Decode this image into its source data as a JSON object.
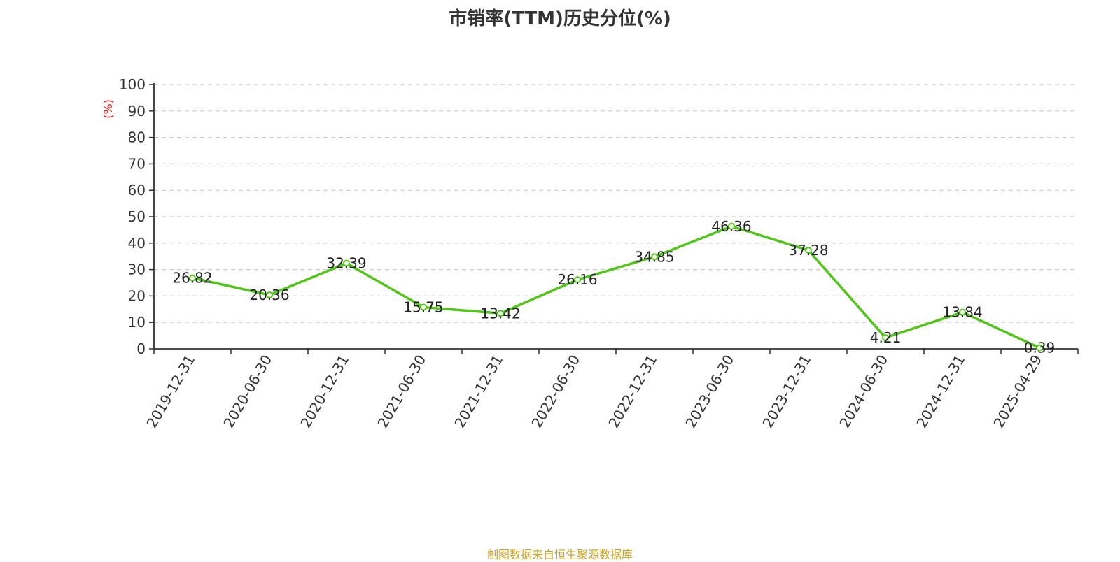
{
  "source_note": "制图数据来自恒生聚源数据库",
  "colors": {
    "line": "#52c41a",
    "axis": "#333333",
    "grid": "#cccccc",
    "ylabel": "#ff0000",
    "source": "#c9a227"
  },
  "chart_data": {
    "type": "line",
    "title": "市销率(TTM)历史分位(%)",
    "ylabel": "(%)",
    "xlabel": "",
    "ylim": [
      0,
      100
    ],
    "yticks": [
      0,
      10,
      20,
      30,
      40,
      50,
      60,
      70,
      80,
      90,
      100
    ],
    "grid": true,
    "categories": [
      "2019-12-31",
      "2020-06-30",
      "2020-12-31",
      "2021-06-30",
      "2021-12-31",
      "2022-06-30",
      "2022-12-31",
      "2023-06-30",
      "2023-12-31",
      "2024-06-30",
      "2024-12-31",
      "2025-04-29"
    ],
    "series": [
      {
        "values": [
          26.82,
          20.36,
          32.39,
          15.75,
          13.42,
          26.16,
          34.85,
          46.36,
          37.28,
          4.21,
          13.84,
          0.39
        ],
        "labels": [
          "26.82",
          "20.36",
          "32.39",
          "15.75",
          "13.42",
          "26.16",
          "34.85",
          "46.36",
          "37.28",
          "4.21",
          "13.84",
          "0.39"
        ]
      }
    ]
  }
}
